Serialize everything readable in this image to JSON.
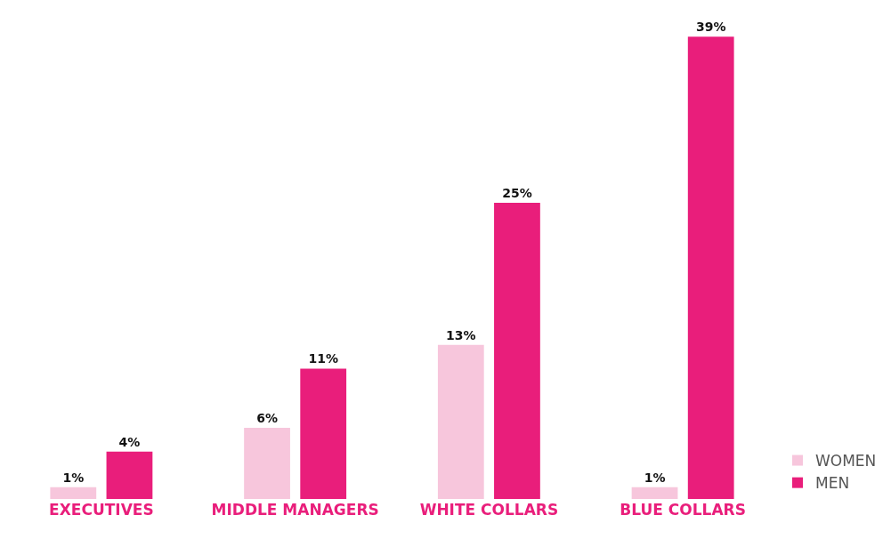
{
  "chart_data": {
    "type": "bar",
    "categories": [
      "EXECUTIVES",
      "MIDDLE MANAGERS",
      "WHITE COLLARS",
      "BLUE COLLARS"
    ],
    "series": [
      {
        "name": "WOMEN",
        "color": "#f7c6dc",
        "values": [
          1,
          6,
          13,
          1
        ],
        "value_labels": [
          "1%",
          "6%",
          "13%",
          "1%"
        ]
      },
      {
        "name": "MEN",
        "color": "#e91e7b",
        "values": [
          4,
          11,
          25,
          39
        ],
        "value_labels": [
          "4%",
          "11%",
          "25%",
          "39%"
        ]
      }
    ],
    "grid": false,
    "legend": "bottom right"
  }
}
